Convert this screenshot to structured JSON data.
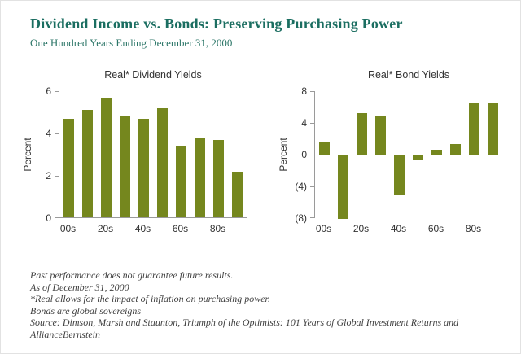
{
  "header": {
    "title": "Dividend Income vs. Bonds: Preserving Purchasing Power",
    "subtitle": "One Hundred Years Ending December 31, 2000"
  },
  "colors": {
    "title_teal": "#1b6e61",
    "bar_olive": "#75871e",
    "axis_gray": "#9a9a9a"
  },
  "chart_data": [
    {
      "type": "bar",
      "title": "Real* Dividend Yields",
      "ylabel": "Percent",
      "categories": [
        "00s",
        "10s",
        "20s",
        "30s",
        "40s",
        "50s",
        "60s",
        "70s",
        "80s",
        "90s"
      ],
      "values": [
        4.7,
        5.1,
        5.7,
        4.8,
        4.7,
        5.2,
        3.4,
        3.8,
        3.7,
        2.2
      ],
      "ylim": [
        0,
        6
      ],
      "yticks": [
        6,
        4,
        2,
        0
      ],
      "ytick_labels": [
        "6",
        "4",
        "2",
        "0"
      ],
      "xtick_labels": [
        "00s",
        "",
        "20s",
        "",
        "40s",
        "",
        "60s",
        "",
        "80s",
        ""
      ],
      "grid": false,
      "legend": "none"
    },
    {
      "type": "bar",
      "title": "Real* Bond Yields",
      "ylabel": "Percent",
      "categories": [
        "00s",
        "10s",
        "20s",
        "30s",
        "40s",
        "50s",
        "60s",
        "70s",
        "80s",
        "90s"
      ],
      "values": [
        1.5,
        -8.0,
        5.2,
        4.8,
        -5.0,
        -0.5,
        0.6,
        1.3,
        6.5,
        6.5
      ],
      "ylim": [
        -8,
        8
      ],
      "yticks": [
        8,
        4,
        0,
        -4,
        -8
      ],
      "ytick_labels": [
        "8",
        "4",
        "0",
        "(4)",
        "(8)"
      ],
      "xtick_labels": [
        "00s",
        "",
        "20s",
        "",
        "40s",
        "",
        "60s",
        "",
        "80s",
        ""
      ],
      "grid": false,
      "legend": "none"
    }
  ],
  "footnotes": [
    "Past performance does not guarantee future results.",
    "As of December 31, 2000",
    "*Real allows for the impact of inflation on purchasing power.",
    "Bonds are global sovereigns",
    "Source: Dimson, Marsh and Staunton, Triumph of the Optimists: 101 Years of Global Investment Returns and AllianceBernstein"
  ]
}
